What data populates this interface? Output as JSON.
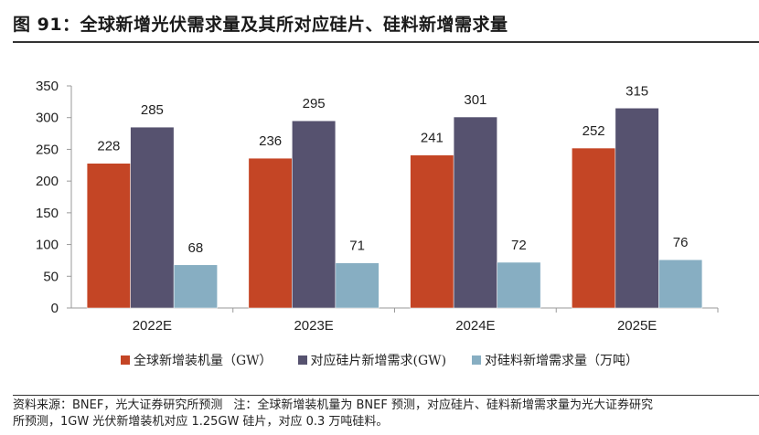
{
  "figure": {
    "title": "图 91：全球新增光伏需求量及其所对应硅片、硅料新增需求量",
    "source_line1_a": "资料来源：BNEF，光大证券研究所预测",
    "source_line1_b": "注：全球新增装机量为 BNEF 预测，对应硅片、硅料新增需求量为光大证券研究",
    "source_line2": "所预测，1GW 光伏新增装机对应 1.25GW 硅片，对应 0.3 万吨硅料。"
  },
  "chart_data": {
    "type": "bar",
    "title": "",
    "xlabel": "",
    "ylabel": "",
    "categories": [
      "2022E",
      "2023E",
      "2024E",
      "2025E"
    ],
    "ylim": [
      0,
      350
    ],
    "yticks": [
      0,
      50,
      100,
      150,
      200,
      250,
      300,
      350
    ],
    "grid": false,
    "legend_position": "bottom",
    "series": [
      {
        "name": "全球新增装机量（GW）",
        "color": "#c44525",
        "values": [
          228,
          236,
          241,
          252
        ]
      },
      {
        "name": "对应硅片新增需求(GW)",
        "color": "#56526f",
        "values": [
          285,
          295,
          301,
          315
        ]
      },
      {
        "name": "对硅料新增需求量（万吨）",
        "color": "#87aec2",
        "values": [
          68,
          71,
          72,
          76
        ]
      }
    ]
  }
}
